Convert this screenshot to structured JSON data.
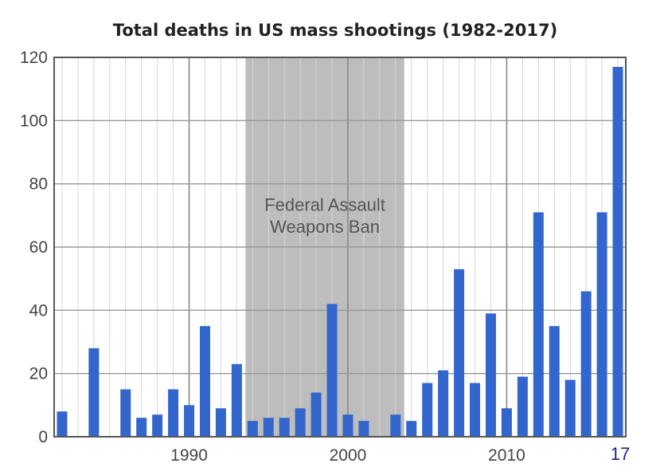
{
  "chart_data": {
    "type": "bar",
    "title": "Total deaths in US mass shootings (1982-2017)",
    "xlabel": "",
    "ylabel": "",
    "x": [
      1982,
      1983,
      1984,
      1985,
      1986,
      1987,
      1988,
      1989,
      1990,
      1991,
      1992,
      1993,
      1994,
      1995,
      1996,
      1997,
      1998,
      1999,
      2000,
      2001,
      2002,
      2003,
      2004,
      2005,
      2006,
      2007,
      2008,
      2009,
      2010,
      2011,
      2012,
      2013,
      2014,
      2015,
      2016,
      2017
    ],
    "values": [
      8,
      0,
      28,
      0,
      15,
      6,
      7,
      15,
      10,
      35,
      9,
      23,
      5,
      6,
      6,
      9,
      14,
      42,
      7,
      5,
      0,
      7,
      5,
      17,
      21,
      53,
      17,
      39,
      9,
      19,
      71,
      35,
      18,
      46,
      71,
      117
    ],
    "xlim": [
      1981.5,
      2017.5
    ],
    "ylim": [
      0,
      120
    ],
    "y_ticks": [
      "0",
      "20",
      "40",
      "60",
      "80",
      "100",
      "120"
    ],
    "x_ticks": [
      "1990",
      "2000",
      "2010"
    ],
    "grid": true,
    "bar_color": "#3366cc",
    "shaded_region": {
      "label_lines": [
        "Federal Assault",
        "Weapons Ban"
      ],
      "color": "#bdbdbd"
    },
    "corner_label": "17"
  }
}
